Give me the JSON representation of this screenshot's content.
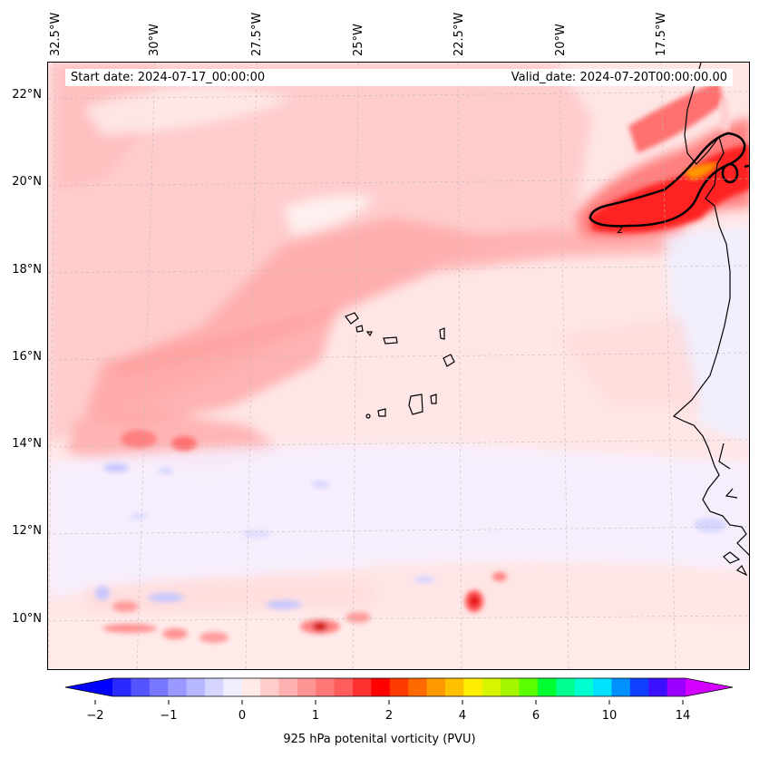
{
  "map": {
    "longitude_labels": [
      "32.5°W",
      "30°W",
      "27.5°W",
      "25°W",
      "22.5°W",
      "20°W",
      "17.5°W"
    ],
    "latitude_labels": [
      "22°N",
      "20°N",
      "18°N",
      "16°N",
      "14°N",
      "12°N",
      "10°N"
    ],
    "start_date": "Start date: 2024-07-17_00:00:00",
    "valid_date": "Valid_date: 2024-07-20T00:00:00.00",
    "contour_label": "2"
  },
  "colorbar": {
    "label": "925 hPa potenital vorticity (PVU)",
    "tick_labels": [
      "−2",
      "−1",
      "0",
      "1",
      "2",
      "4",
      "6",
      "10",
      "14"
    ],
    "colors": [
      "#0000ff",
      "#2a2aff",
      "#5555ff",
      "#7777ff",
      "#9999ff",
      "#b7b7ff",
      "#d5d5ff",
      "#efefff",
      "#ffe9e9",
      "#ffcccc",
      "#ffb0b0",
      "#ff9494",
      "#ff7878",
      "#ff5c5c",
      "#ff3030",
      "#ff0000",
      "#ff3a00",
      "#ff6a00",
      "#ff9900",
      "#ffc000",
      "#ffee00",
      "#d8f500",
      "#a4f500",
      "#5cff00",
      "#00ff30",
      "#00ff90",
      "#00ffd0",
      "#00e0ff",
      "#0090ff",
      "#1040ff",
      "#3a10ff",
      "#9a00ff",
      "#d400ff"
    ]
  }
}
